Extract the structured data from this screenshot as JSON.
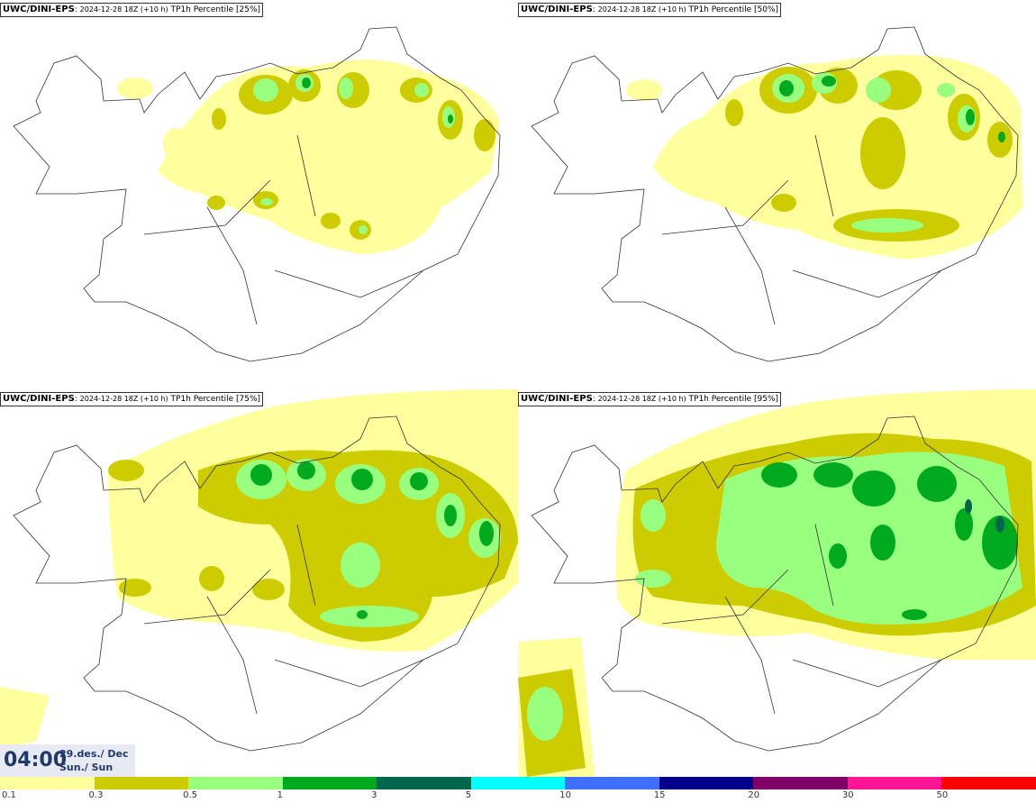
{
  "panels": [
    {
      "model": "UWC/DINI-EPS",
      "run": "2024-12-28 18Z (+10 h)",
      "field": "TP1h Percentile [25%]"
    },
    {
      "model": "UWC/DINI-EPS",
      "run": "2024-12-28 18Z (+10 h)",
      "field": "TP1h Percentile [50%]"
    },
    {
      "model": "UWC/DINI-EPS",
      "run": "2024-12-28 18Z (+10 h)",
      "field": "TP1h Percentile [75%]"
    },
    {
      "model": "UWC/DINI-EPS",
      "run": "2024-12-28 18Z (+10 h)",
      "field": "TP1h Percentile [95%]"
    }
  ],
  "timestamp": {
    "time": "04:00",
    "date": "29.des./ Dec",
    "day": "Sun./ Sun"
  },
  "legend": {
    "colors": [
      "#ffff9e",
      "#cccc00",
      "#99ff7f",
      "#00aa1e",
      "#00664c",
      "#00ffff",
      "#3f6fff",
      "#000088",
      "#7f0066",
      "#ff1493",
      "#ff0000"
    ],
    "labels": [
      "0.1",
      "0.3",
      "0.5",
      "1",
      "3",
      "5",
      "10",
      "15",
      "20",
      "30",
      "50"
    ]
  }
}
